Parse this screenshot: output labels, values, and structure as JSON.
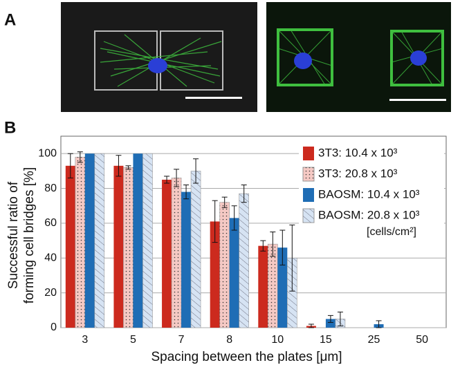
{
  "panel_labels": [
    "A",
    "B"
  ],
  "chart_data": {
    "type": "bar",
    "ylabel": [
      "Successful ratio of",
      "forming cell bridges [%]"
    ],
    "xlabel": "Spacing between the plates [μm]",
    "categories": [
      "3",
      "5",
      "7",
      "8",
      "10",
      "15",
      "25",
      "50"
    ],
    "series": [
      {
        "name": "3T3: 10.4 x 10³",
        "color": "#cc2a1e",
        "pattern": null,
        "values": [
          93,
          93,
          85,
          61,
          47,
          1,
          0,
          0
        ],
        "errors": [
          7,
          6,
          2,
          12,
          3,
          1,
          null,
          null
        ]
      },
      {
        "name": "3T3: 20.8 x 10³",
        "color": "#f5c9c4",
        "pattern": "dots",
        "values": [
          98,
          92,
          86,
          72,
          48,
          0,
          0,
          0
        ],
        "errors": [
          3,
          1,
          5,
          3,
          7,
          null,
          null,
          null
        ]
      },
      {
        "name": "BAOSM: 10.4 x 10³",
        "color": "#1f6db5",
        "pattern": null,
        "values": [
          100,
          100,
          78,
          63,
          46,
          5,
          2,
          0
        ],
        "errors": [
          null,
          null,
          4,
          7,
          10,
          2,
          2,
          null
        ]
      },
      {
        "name": "BAOSM: 20.8 x 10³",
        "color": "#d6e3f3",
        "pattern": "hatch",
        "values": [
          100,
          100,
          90,
          77,
          40,
          5,
          0,
          0
        ],
        "errors": [
          null,
          null,
          7,
          5,
          19,
          4,
          null,
          null
        ]
      }
    ],
    "legend_note": "[cells/cm²]",
    "legend": "upper right",
    "ylim": [
      0,
      110
    ],
    "yticks": [
      0,
      20,
      40,
      60,
      80,
      100
    ],
    "grid": true
  }
}
